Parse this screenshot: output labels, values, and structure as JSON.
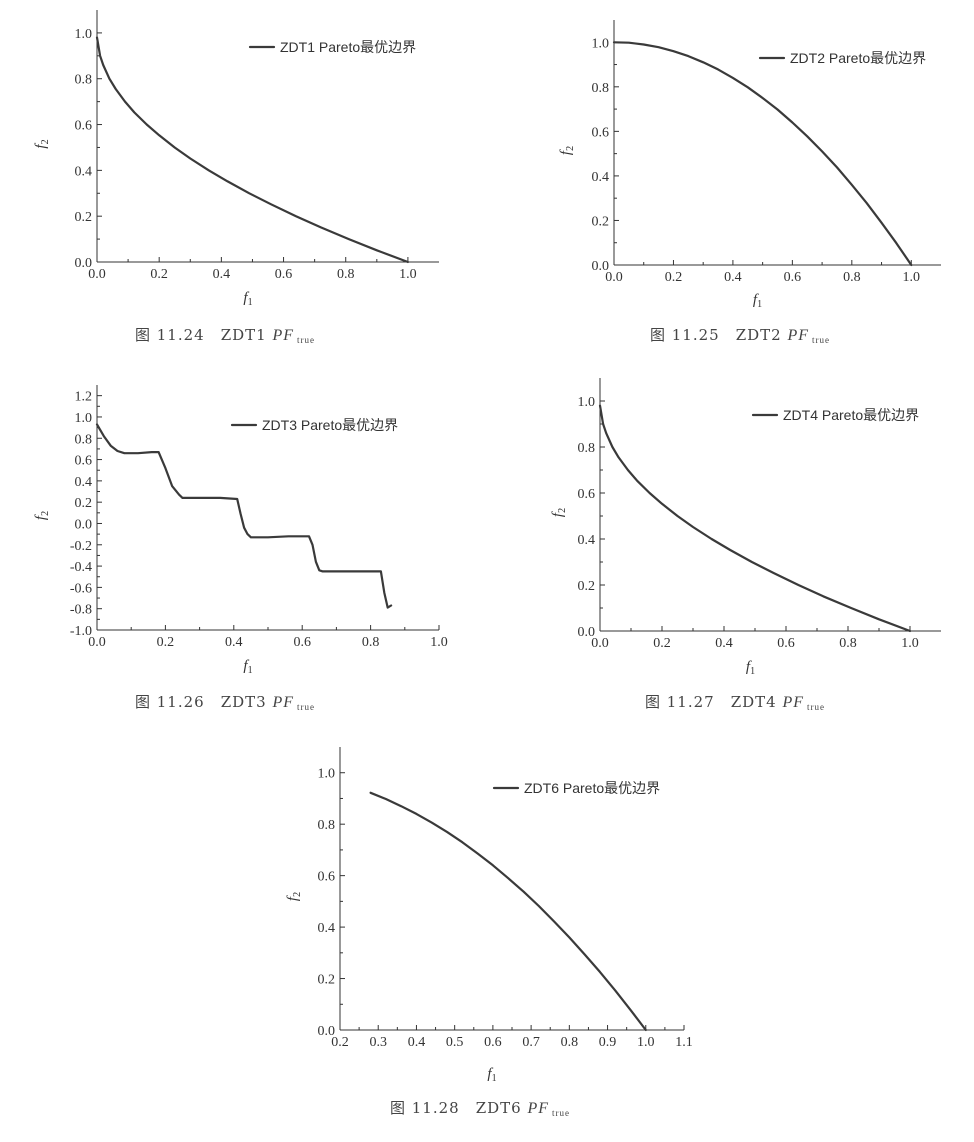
{
  "chart_data": [
    {
      "id": "zdt1",
      "type": "line",
      "xlabel": "f1",
      "ylabel": "f2",
      "xlim": [
        0.0,
        1.1
      ],
      "ylim": [
        0.0,
        1.1
      ],
      "xticks": [
        0.0,
        0.2,
        0.4,
        0.6,
        0.8,
        1.0
      ],
      "yticks": [
        0.0,
        0.2,
        0.4,
        0.6,
        0.8,
        1.0
      ],
      "legend": "ZDT1 Pareto最优边界",
      "legend_position": "top-right",
      "series": [
        {
          "name": "ZDT1 Pareto最优边界",
          "x": [
            0.0,
            0.01,
            0.02,
            0.04,
            0.06,
            0.09,
            0.12,
            0.16,
            0.2,
            0.25,
            0.3,
            0.36,
            0.42,
            0.49,
            0.56,
            0.64,
            0.72,
            0.81,
            0.9,
            1.0
          ],
          "y": [
            0.98,
            0.9,
            0.86,
            0.8,
            0.755,
            0.7,
            0.653,
            0.6,
            0.553,
            0.5,
            0.452,
            0.4,
            0.352,
            0.3,
            0.252,
            0.2,
            0.151,
            0.1,
            0.051,
            0.0
          ]
        }
      ],
      "caption": {
        "prefix": "图 11.24　ZDT1 ",
        "symbol": "PF",
        "sub": "true"
      }
    },
    {
      "id": "zdt2",
      "type": "line",
      "xlabel": "f1",
      "ylabel": "f2",
      "xlim": [
        0.0,
        1.1
      ],
      "ylim": [
        0.0,
        1.1
      ],
      "xticks": [
        0.0,
        0.2,
        0.4,
        0.6,
        0.8,
        1.0
      ],
      "yticks": [
        0.0,
        0.2,
        0.4,
        0.6,
        0.8,
        1.0
      ],
      "legend": "ZDT2 Pareto最优边界",
      "legend_position": "top-right",
      "series": [
        {
          "name": "ZDT2 Pareto最优边界",
          "x": [
            0.0,
            0.05,
            0.1,
            0.15,
            0.2,
            0.25,
            0.3,
            0.35,
            0.4,
            0.45,
            0.5,
            0.55,
            0.6,
            0.65,
            0.7,
            0.75,
            0.8,
            0.85,
            0.9,
            0.95,
            1.0
          ],
          "y": [
            1.0,
            0.998,
            0.99,
            0.978,
            0.96,
            0.938,
            0.91,
            0.878,
            0.84,
            0.798,
            0.75,
            0.698,
            0.64,
            0.578,
            0.51,
            0.438,
            0.36,
            0.278,
            0.19,
            0.098,
            0.0
          ]
        }
      ],
      "caption": {
        "prefix": "图 11.25　ZDT2 ",
        "symbol": "PF",
        "sub": "true"
      }
    },
    {
      "id": "zdt3",
      "type": "line",
      "xlabel": "f1",
      "ylabel": "f2",
      "xlim": [
        0.0,
        1.0
      ],
      "ylim": [
        -1.0,
        1.3
      ],
      "xticks": [
        0.0,
        0.2,
        0.4,
        0.6,
        0.8,
        1.0
      ],
      "yticks": [
        -1.0,
        -0.8,
        -0.6,
        -0.4,
        -0.2,
        0.0,
        0.2,
        0.4,
        0.6,
        0.8,
        1.0,
        1.2
      ],
      "legend": "ZDT3 Pareto最优边界",
      "legend_position": "top-right",
      "series": [
        {
          "name": "ZDT3 Pareto最优边界",
          "x": [
            0.0,
            0.02,
            0.04,
            0.06,
            0.08,
            0.12,
            0.16,
            0.18,
            0.2,
            0.22,
            0.24,
            0.25,
            0.3,
            0.36,
            0.41,
            0.42,
            0.43,
            0.44,
            0.45,
            0.5,
            0.56,
            0.62,
            0.63,
            0.64,
            0.65,
            0.66,
            0.7,
            0.76,
            0.83,
            0.84,
            0.85,
            0.86
          ],
          "y": [
            0.93,
            0.82,
            0.73,
            0.68,
            0.66,
            0.66,
            0.67,
            0.67,
            0.52,
            0.35,
            0.27,
            0.24,
            0.24,
            0.24,
            0.23,
            0.09,
            -0.04,
            -0.1,
            -0.13,
            -0.13,
            -0.12,
            -0.12,
            -0.2,
            -0.36,
            -0.44,
            -0.45,
            -0.45,
            -0.45,
            -0.45,
            -0.65,
            -0.79,
            -0.77
          ]
        }
      ],
      "caption": {
        "prefix": "图 11.26　ZDT3 ",
        "symbol": "PF",
        "sub": "true"
      }
    },
    {
      "id": "zdt4",
      "type": "line",
      "xlabel": "f1",
      "ylabel": "f2",
      "xlim": [
        0.0,
        1.1
      ],
      "ylim": [
        0.0,
        1.1
      ],
      "xticks": [
        0.0,
        0.2,
        0.4,
        0.6,
        0.8,
        1.0
      ],
      "yticks": [
        0.0,
        0.2,
        0.4,
        0.6,
        0.8,
        1.0
      ],
      "legend": "ZDT4 Pareto最优边界",
      "legend_position": "top-right",
      "series": [
        {
          "name": "ZDT4 Pareto最优边界",
          "x": [
            0.0,
            0.01,
            0.02,
            0.04,
            0.06,
            0.09,
            0.12,
            0.16,
            0.2,
            0.25,
            0.3,
            0.36,
            0.42,
            0.49,
            0.56,
            0.64,
            0.72,
            0.81,
            0.9,
            1.0
          ],
          "y": [
            0.98,
            0.9,
            0.86,
            0.8,
            0.755,
            0.7,
            0.653,
            0.6,
            0.553,
            0.5,
            0.452,
            0.4,
            0.352,
            0.3,
            0.252,
            0.2,
            0.151,
            0.1,
            0.051,
            0.0
          ]
        }
      ],
      "caption": {
        "prefix": "图 11.27　ZDT4 ",
        "symbol": "PF",
        "sub": "true"
      }
    },
    {
      "id": "zdt6",
      "type": "line",
      "xlabel": "f1",
      "ylabel": "f2",
      "xlim": [
        0.2,
        1.1
      ],
      "ylim": [
        0.0,
        1.1
      ],
      "xticks": [
        0.2,
        0.3,
        0.4,
        0.5,
        0.6,
        0.7,
        0.8,
        0.9,
        1.0,
        1.1
      ],
      "yticks": [
        0.0,
        0.2,
        0.4,
        0.6,
        0.8,
        1.0
      ],
      "legend": "ZDT6 Pareto最优边界",
      "legend_position": "top-right",
      "series": [
        {
          "name": "ZDT6 Pareto最优边界",
          "x": [
            0.28,
            0.32,
            0.36,
            0.4,
            0.44,
            0.48,
            0.52,
            0.56,
            0.6,
            0.64,
            0.68,
            0.72,
            0.76,
            0.8,
            0.84,
            0.88,
            0.92,
            0.96,
            1.0
          ],
          "y": [
            0.922,
            0.898,
            0.87,
            0.84,
            0.806,
            0.77,
            0.73,
            0.686,
            0.64,
            0.59,
            0.538,
            0.482,
            0.422,
            0.36,
            0.294,
            0.226,
            0.154,
            0.078,
            0.0
          ]
        }
      ],
      "caption": {
        "prefix": "图 11.28　ZDT6 ",
        "symbol": "PF",
        "sub": "true"
      }
    }
  ]
}
